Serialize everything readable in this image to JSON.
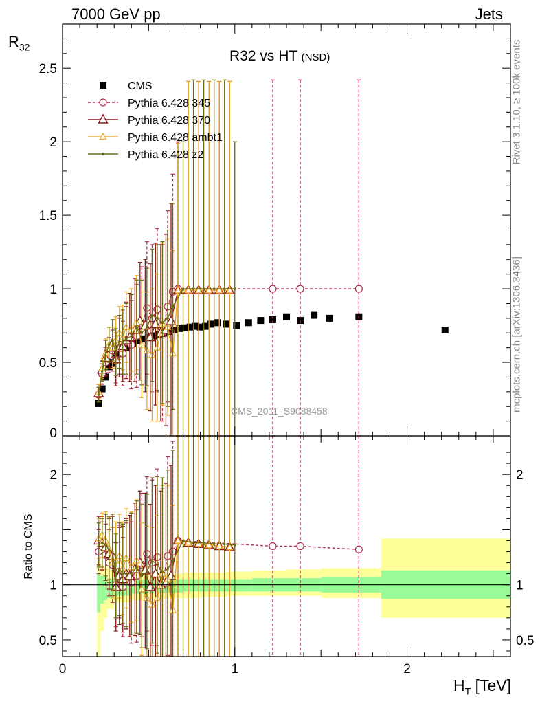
{
  "header": {
    "left": "7000 GeV pp",
    "right": "Jets"
  },
  "side_labels": {
    "rivet": "Rivet 3.1.10, ≥ 100k events",
    "mcplots": "mcplots.cern.ch [arXiv:1306.3436]"
  },
  "watermark": "CMS_2011_S9088458",
  "plot_title": {
    "main": "R32 vs HT",
    "sub": "(NSD)"
  },
  "axes": {
    "ylabel_main": "R",
    "ylabel_main_sub": "32",
    "ylabel_ratio": "Ratio to CMS",
    "xlabel": "H",
    "xlabel_sub": "T",
    "xlabel_unit": "[TeV]"
  },
  "colors": {
    "cms": "#000000",
    "p345": "#b03050",
    "p370": "#8b1a1a",
    "ambt1": "#f0a820",
    "z2": "#6b6b10",
    "band_inner": "#98fb98",
    "band_outer": "#ffff99"
  },
  "chart_data": [
    {
      "type": "scatter",
      "title": "R32 vs HT (NSD)",
      "xlabel": "H_T [TeV]",
      "ylabel": "R_32",
      "xlim": [
        0,
        2.6
      ],
      "ylim": [
        0,
        2.8
      ],
      "y_ticks": [
        "0",
        "0.5",
        "1",
        "1.5",
        "2",
        "2.5"
      ],
      "x_ticks": [
        "0",
        "1",
        "2"
      ],
      "legend_position": "top-left",
      "series": [
        {
          "name": "CMS",
          "marker": "square",
          "x": [
            0.21,
            0.23,
            0.25,
            0.27,
            0.29,
            0.31,
            0.33,
            0.35,
            0.37,
            0.39,
            0.41,
            0.44,
            0.47,
            0.5,
            0.53,
            0.56,
            0.59,
            0.62,
            0.65,
            0.68,
            0.71,
            0.74,
            0.77,
            0.8,
            0.83,
            0.86,
            0.9,
            0.95,
            1.01,
            1.08,
            1.15,
            1.22,
            1.3,
            1.38,
            1.46,
            1.55,
            1.72,
            2.22
          ],
          "y": [
            0.22,
            0.32,
            0.4,
            0.47,
            0.5,
            0.53,
            0.56,
            0.58,
            0.6,
            0.62,
            0.63,
            0.65,
            0.66,
            0.67,
            0.68,
            0.69,
            0.7,
            0.71,
            0.72,
            0.73,
            0.735,
            0.74,
            0.745,
            0.74,
            0.745,
            0.76,
            0.77,
            0.76,
            0.75,
            0.77,
            0.785,
            0.79,
            0.81,
            0.785,
            0.82,
            0.8,
            0.81,
            0.72
          ]
        },
        {
          "name": "Pythia 6.428 345",
          "marker": "open-circle",
          "line": "dashed",
          "x": [
            0.21,
            0.23,
            0.25,
            0.27,
            0.29,
            0.31,
            0.33,
            0.35,
            0.37,
            0.4,
            0.43,
            0.46,
            0.49,
            0.52,
            0.55,
            0.58,
            0.61,
            0.64,
            0.67,
            1.22,
            1.38,
            1.72
          ],
          "y": [
            0.28,
            0.42,
            0.5,
            0.55,
            0.58,
            0.52,
            0.62,
            0.56,
            0.64,
            0.62,
            0.68,
            0.75,
            0.87,
            0.8,
            0.86,
            0.7,
            0.88,
            0.98,
            1.0,
            1.0,
            1.0,
            1.0
          ],
          "err": [
            0.05,
            0.07,
            0.1,
            0.12,
            0.14,
            0.16,
            0.2,
            0.22,
            0.24,
            0.3,
            0.35,
            0.4,
            0.45,
            0.5,
            0.55,
            0.6,
            0.65,
            0.8,
            1.0,
            1.42,
            1.42,
            1.42
          ]
        },
        {
          "name": "Pythia 6.428 370",
          "marker": "open-triangle",
          "line": "solid",
          "x": [
            0.21,
            0.23,
            0.25,
            0.27,
            0.29,
            0.31,
            0.33,
            0.35,
            0.37,
            0.39,
            0.42,
            0.45,
            0.48,
            0.51,
            0.54,
            0.57,
            0.6,
            0.63,
            0.67,
            0.73,
            0.79,
            0.85,
            0.91,
            0.97
          ],
          "y": [
            0.29,
            0.45,
            0.53,
            0.6,
            0.63,
            0.52,
            0.6,
            0.61,
            0.65,
            0.67,
            0.72,
            0.78,
            0.75,
            0.67,
            0.76,
            0.7,
            0.72,
            0.78,
            0.99,
            0.99,
            0.99,
            0.99,
            0.99,
            0.99
          ],
          "err": [
            0.06,
            0.08,
            0.12,
            0.14,
            0.16,
            0.18,
            0.2,
            0.24,
            0.26,
            0.3,
            0.35,
            0.4,
            0.45,
            0.5,
            0.55,
            0.6,
            0.65,
            0.8,
            1.0,
            1.42,
            1.42,
            1.42,
            1.42,
            1.42
          ]
        },
        {
          "name": "Pythia 6.428 ambt1",
          "marker": "open-triangle-small",
          "line": "solid",
          "x": [
            0.21,
            0.23,
            0.25,
            0.27,
            0.29,
            0.31,
            0.33,
            0.35,
            0.37,
            0.4,
            0.43,
            0.46,
            0.49,
            0.52,
            0.55,
            0.58,
            0.61,
            0.64,
            0.67,
            0.73,
            0.79,
            0.85,
            0.91,
            0.97
          ],
          "y": [
            0.3,
            0.46,
            0.56,
            0.62,
            0.6,
            0.65,
            0.7,
            0.67,
            0.74,
            0.72,
            0.77,
            0.62,
            0.58,
            0.55,
            0.6,
            0.76,
            0.74,
            0.56,
            0.99,
            0.99,
            0.99,
            0.99,
            0.99,
            0.99
          ],
          "err": [
            0.05,
            0.07,
            0.1,
            0.12,
            0.14,
            0.16,
            0.18,
            0.22,
            0.24,
            0.28,
            0.32,
            0.36,
            0.4,
            0.45,
            0.5,
            0.55,
            0.6,
            0.7,
            1.0,
            1.42,
            1.42,
            1.42,
            1.42,
            1.42
          ]
        },
        {
          "name": "Pythia 6.428 z2",
          "marker": "dot",
          "line": "solid",
          "x": [
            0.21,
            0.23,
            0.25,
            0.27,
            0.29,
            0.31,
            0.33,
            0.35,
            0.37,
            0.4,
            0.43,
            0.46,
            0.49,
            0.52,
            0.55,
            0.58,
            0.61,
            0.64,
            0.7,
            0.76,
            0.82,
            0.88,
            0.94,
            1.0
          ],
          "y": [
            0.28,
            0.44,
            0.55,
            0.62,
            0.65,
            0.57,
            0.64,
            0.64,
            0.66,
            0.68,
            0.74,
            0.7,
            0.74,
            0.82,
            0.8,
            0.77,
            0.8,
            0.88,
            1.0,
            1.0,
            1.0,
            1.0,
            1.0,
            1.0
          ],
          "err": [
            0.05,
            0.07,
            0.1,
            0.12,
            0.14,
            0.16,
            0.18,
            0.22,
            0.24,
            0.28,
            0.32,
            0.36,
            0.4,
            0.45,
            0.5,
            0.55,
            0.6,
            0.7,
            1.0,
            1.42,
            1.42,
            1.42,
            1.42,
            1.0
          ]
        }
      ]
    },
    {
      "type": "line",
      "ylabel": "Ratio to CMS",
      "xlim": [
        0,
        2.6
      ],
      "ylim": [
        0.35,
        2.35
      ],
      "y_ticks": [
        "0.5",
        "1",
        "2"
      ],
      "x_ticks": [
        "0",
        "1",
        "2"
      ],
      "bands": {
        "x_edges": [
          0.2,
          0.22,
          0.24,
          0.26,
          0.3,
          0.4,
          0.5,
          0.6,
          0.7,
          0.8,
          0.95,
          1.1,
          1.3,
          1.5,
          1.85,
          2.6
        ],
        "inner_lo": [
          0.75,
          0.83,
          0.86,
          0.88,
          0.9,
          0.92,
          0.93,
          0.93,
          0.94,
          0.94,
          0.94,
          0.94,
          0.94,
          0.93,
          0.87
        ],
        "inner_hi": [
          1.1,
          1.08,
          1.07,
          1.06,
          1.05,
          1.05,
          1.05,
          1.05,
          1.05,
          1.05,
          1.05,
          1.06,
          1.06,
          1.07,
          1.13
        ],
        "outer_lo": [
          0.35,
          0.58,
          0.7,
          0.78,
          0.84,
          0.86,
          0.87,
          0.88,
          0.88,
          0.89,
          0.9,
          0.9,
          0.9,
          0.88,
          0.7
        ],
        "outer_hi": [
          1.22,
          1.18,
          1.16,
          1.14,
          1.12,
          1.11,
          1.1,
          1.1,
          1.11,
          1.11,
          1.12,
          1.13,
          1.14,
          1.15,
          1.42
        ]
      },
      "series": [
        {
          "name": "Pythia 6.428 345",
          "x": [
            0.21,
            0.23,
            0.25,
            0.27,
            0.29,
            0.31,
            0.33,
            0.35,
            0.37,
            0.4,
            0.43,
            0.46,
            0.49,
            0.52,
            0.55,
            0.58,
            0.61,
            0.64,
            0.67,
            1.22,
            1.38,
            1.72
          ],
          "y": [
            1.3,
            1.35,
            1.27,
            1.2,
            1.18,
            1.0,
            1.12,
            0.98,
            1.08,
            1.02,
            1.08,
            1.18,
            1.28,
            1.2,
            1.25,
            1.02,
            1.26,
            1.3,
            1.4,
            1.35,
            1.35,
            1.32
          ],
          "err": [
            0.2,
            0.22,
            0.28,
            0.3,
            0.34,
            0.38,
            0.42,
            0.45,
            0.48,
            0.55,
            0.6,
            0.65,
            0.7,
            0.75,
            0.8,
            0.85,
            0.9,
            1.0,
            1.1,
            1.4,
            1.4,
            1.4
          ]
        },
        {
          "name": "Pythia 6.428 370",
          "x": [
            0.21,
            0.23,
            0.25,
            0.27,
            0.29,
            0.31,
            0.33,
            0.35,
            0.37,
            0.39,
            0.42,
            0.45,
            0.48,
            0.51,
            0.54,
            0.57,
            0.6,
            0.63,
            0.67,
            0.73,
            0.79,
            0.85,
            0.91,
            0.97
          ],
          "y": [
            1.4,
            1.38,
            1.34,
            1.28,
            1.26,
            0.98,
            1.08,
            1.05,
            1.1,
            1.08,
            1.14,
            1.2,
            1.13,
            0.98,
            1.1,
            1.0,
            1.02,
            1.08,
            1.4,
            1.38,
            1.37,
            1.36,
            1.35,
            1.34
          ],
          "err": [
            0.22,
            0.24,
            0.3,
            0.32,
            0.36,
            0.4,
            0.44,
            0.48,
            0.5,
            0.55,
            0.6,
            0.65,
            0.7,
            0.75,
            0.8,
            0.85,
            0.9,
            1.0,
            1.2,
            1.4,
            1.4,
            1.4,
            1.4,
            1.4
          ]
        },
        {
          "name": "Pythia 6.428 ambt1",
          "x": [
            0.21,
            0.23,
            0.25,
            0.27,
            0.29,
            0.31,
            0.33,
            0.35,
            0.37,
            0.4,
            0.43,
            0.46,
            0.49,
            0.52,
            0.55,
            0.58,
            0.61,
            0.64,
            0.67,
            0.73,
            0.79,
            0.85,
            0.91,
            0.97
          ],
          "y": [
            1.42,
            1.45,
            1.4,
            1.33,
            1.2,
            1.22,
            1.26,
            1.15,
            1.24,
            1.16,
            1.22,
            0.96,
            0.88,
            0.82,
            0.88,
            1.1,
            1.05,
            0.77,
            1.4,
            1.38,
            1.37,
            1.36,
            1.35,
            1.34
          ],
          "err": [
            0.18,
            0.2,
            0.26,
            0.28,
            0.32,
            0.35,
            0.38,
            0.42,
            0.45,
            0.5,
            0.55,
            0.6,
            0.65,
            0.7,
            0.75,
            0.8,
            0.85,
            0.95,
            1.1,
            1.4,
            1.4,
            1.4,
            1.4,
            1.4
          ]
        },
        {
          "name": "Pythia 6.428 z2",
          "x": [
            0.21,
            0.23,
            0.25,
            0.27,
            0.29,
            0.31,
            0.33,
            0.35,
            0.37,
            0.4,
            0.43,
            0.46,
            0.49,
            0.52,
            0.55,
            0.58,
            0.61,
            0.64,
            0.7,
            0.76,
            0.82,
            0.88,
            0.94,
            1.0
          ],
          "y": [
            1.36,
            1.38,
            1.36,
            1.32,
            1.3,
            1.08,
            1.14,
            1.1,
            1.1,
            1.1,
            1.16,
            1.08,
            1.12,
            1.22,
            1.18,
            1.12,
            1.14,
            1.22,
            1.4,
            1.38,
            1.38,
            1.37,
            1.37,
            1.36
          ],
          "err": [
            0.2,
            0.22,
            0.28,
            0.3,
            0.34,
            0.38,
            0.42,
            0.45,
            0.48,
            0.55,
            0.6,
            0.65,
            0.7,
            0.75,
            0.8,
            0.85,
            0.9,
            1.0,
            1.3,
            1.4,
            1.4,
            1.4,
            1.4,
            1.3
          ]
        }
      ]
    }
  ]
}
